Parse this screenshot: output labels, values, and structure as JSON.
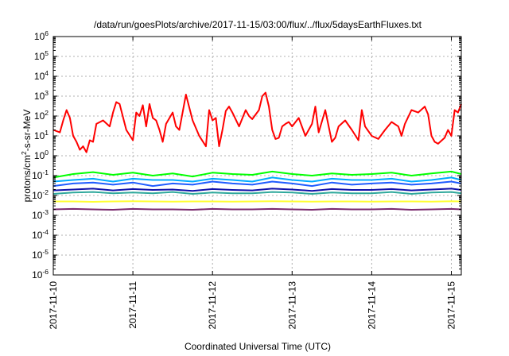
{
  "chart_data": {
    "type": "line",
    "title": "/data/run/goesPlots/archive/2017-11-15/03:00/flux/../flux/5daysEarthFluxes.txt",
    "xlabel": "Coordinated Universal Time (UTC)",
    "ylabel": {
      "pre": "protons/cm",
      "sup": "2",
      "post": "-s-sr-MeV"
    },
    "y_scale": "log",
    "ylim": [
      1e-06,
      1000000.0
    ],
    "y_ticks": [
      {
        "exp": "-6",
        "value": 1e-06
      },
      {
        "exp": "-5",
        "value": 1e-05
      },
      {
        "exp": "-4",
        "value": 0.0001
      },
      {
        "exp": "-3",
        "value": 0.001
      },
      {
        "exp": "-2",
        "value": 0.01
      },
      {
        "exp": "-1",
        "value": 0.1
      },
      {
        "exp": "0",
        "value": 1
      },
      {
        "exp": "1",
        "value": 10.0
      },
      {
        "exp": "2",
        "value": 100.0
      },
      {
        "exp": "3",
        "value": 1000.0
      },
      {
        "exp": "4",
        "value": 10000.0
      },
      {
        "exp": "5",
        "value": 100000.0
      },
      {
        "exp": "6",
        "value": 1000000.0
      }
    ],
    "xlim": [
      "2017-11-10T00:00",
      "2017-11-15T03:00"
    ],
    "x_ticks": [
      "2017-11-10",
      "2017-11-11",
      "2017-11-12",
      "2017-11-13",
      "2017-11-14",
      "2017-11-15"
    ],
    "grid": true,
    "series": [
      {
        "color": "#ff0000",
        "x_hours": [
          0,
          2,
          3,
          4,
          5,
          6,
          7,
          8,
          9,
          10,
          11,
          12,
          13,
          15,
          17,
          18,
          19,
          20,
          22,
          24,
          25,
          26,
          27,
          28,
          29,
          30,
          31,
          32,
          33,
          34,
          36,
          37,
          38,
          40,
          42,
          43,
          44,
          46,
          47,
          48,
          49,
          50,
          51,
          52,
          53,
          54,
          56,
          58,
          59,
          60,
          62,
          63,
          64,
          65,
          66,
          67,
          68,
          69,
          70,
          71,
          72,
          74,
          76,
          78,
          79,
          80,
          82,
          84,
          85,
          86,
          88,
          90,
          92,
          93,
          94,
          96,
          98,
          100,
          102,
          104,
          105,
          106,
          108,
          110,
          112,
          113,
          114,
          115,
          116,
          118,
          119,
          120,
          121,
          122,
          123
        ],
        "values": [
          20,
          15,
          60,
          200,
          80,
          10,
          5,
          2,
          3,
          1.5,
          6,
          5,
          40,
          60,
          30,
          150,
          500,
          400,
          20,
          6,
          150,
          100,
          350,
          30,
          400,
          80,
          60,
          20,
          5,
          40,
          150,
          30,
          20,
          1200,
          60,
          25,
          10,
          3,
          200,
          60,
          80,
          3,
          20,
          180,
          300,
          150,
          30,
          200,
          100,
          70,
          200,
          1000,
          1500,
          300,
          20,
          7,
          8,
          30,
          40,
          50,
          30,
          80,
          10,
          40,
          300,
          15,
          200,
          5,
          8,
          30,
          60,
          20,
          6,
          200,
          30,
          10,
          7,
          20,
          50,
          30,
          10,
          40,
          200,
          150,
          300,
          120,
          10,
          5,
          4,
          8,
          20,
          10,
          200,
          150,
          400
        ]
      },
      {
        "color": "#00ff00",
        "x_hours": [
          0,
          6,
          12,
          18,
          24,
          30,
          36,
          42,
          48,
          54,
          60,
          66,
          72,
          78,
          84,
          90,
          96,
          102,
          108,
          114,
          120,
          123
        ],
        "values": [
          0.08,
          0.12,
          0.15,
          0.11,
          0.14,
          0.1,
          0.13,
          0.09,
          0.14,
          0.12,
          0.11,
          0.16,
          0.12,
          0.1,
          0.13,
          0.11,
          0.12,
          0.14,
          0.1,
          0.13,
          0.16,
          0.12
        ]
      },
      {
        "color": "#00aaff",
        "x_hours": [
          0,
          6,
          12,
          18,
          24,
          30,
          36,
          42,
          48,
          54,
          60,
          66,
          72,
          78,
          84,
          90,
          96,
          102,
          108,
          114,
          120,
          123
        ],
        "values": [
          0.05,
          0.06,
          0.07,
          0.05,
          0.07,
          0.06,
          0.06,
          0.05,
          0.07,
          0.06,
          0.05,
          0.08,
          0.06,
          0.05,
          0.07,
          0.06,
          0.06,
          0.07,
          0.05,
          0.06,
          0.08,
          0.06
        ]
      },
      {
        "color": "#1f5cff",
        "x_hours": [
          0,
          6,
          12,
          18,
          24,
          30,
          36,
          42,
          48,
          54,
          60,
          66,
          72,
          78,
          84,
          90,
          96,
          102,
          108,
          114,
          120,
          123
        ],
        "values": [
          0.03,
          0.04,
          0.045,
          0.035,
          0.045,
          0.03,
          0.04,
          0.035,
          0.05,
          0.04,
          0.035,
          0.05,
          0.04,
          0.03,
          0.045,
          0.035,
          0.04,
          0.045,
          0.035,
          0.04,
          0.05,
          0.04
        ]
      },
      {
        "color": "#2ea89c",
        "x_hours": [
          0,
          6,
          12,
          18,
          24,
          30,
          36,
          42,
          48,
          54,
          60,
          66,
          72,
          78,
          84,
          90,
          96,
          102,
          108,
          114,
          120,
          123
        ],
        "values": [
          0.012,
          0.014,
          0.015,
          0.013,
          0.014,
          0.013,
          0.015,
          0.012,
          0.014,
          0.013,
          0.013,
          0.015,
          0.014,
          0.012,
          0.014,
          0.013,
          0.013,
          0.015,
          0.012,
          0.014,
          0.015,
          0.013
        ]
      },
      {
        "color": "#1010aa",
        "x_hours": [
          0,
          6,
          12,
          18,
          24,
          30,
          36,
          42,
          48,
          54,
          60,
          66,
          72,
          78,
          84,
          90,
          96,
          102,
          108,
          114,
          120,
          123
        ],
        "values": [
          0.018,
          0.02,
          0.022,
          0.018,
          0.021,
          0.019,
          0.02,
          0.017,
          0.021,
          0.019,
          0.018,
          0.022,
          0.02,
          0.017,
          0.021,
          0.019,
          0.019,
          0.021,
          0.018,
          0.02,
          0.022,
          0.019
        ]
      },
      {
        "color": "#ffff33",
        "x_hours": [
          0,
          6,
          12,
          18,
          24,
          30,
          36,
          42,
          48,
          54,
          60,
          66,
          72,
          78,
          84,
          90,
          96,
          102,
          108,
          114,
          120,
          123
        ],
        "values": [
          0.005,
          0.005,
          0.0048,
          0.005,
          0.0051,
          0.005,
          0.0049,
          0.005,
          0.005,
          0.0049,
          0.005,
          0.0051,
          0.005,
          0.0049,
          0.005,
          0.005,
          0.0049,
          0.005,
          0.005,
          0.0049,
          0.0051,
          0.005
        ]
      },
      {
        "color": "#7a2a6e",
        "x_hours": [
          0,
          6,
          12,
          18,
          24,
          30,
          36,
          42,
          48,
          54,
          60,
          66,
          72,
          78,
          84,
          90,
          96,
          102,
          108,
          114,
          120,
          123
        ],
        "values": [
          0.002,
          0.0021,
          0.002,
          0.0019,
          0.0021,
          0.002,
          0.002,
          0.0019,
          0.0021,
          0.002,
          0.002,
          0.0021,
          0.002,
          0.0019,
          0.0021,
          0.002,
          0.002,
          0.0021,
          0.0019,
          0.002,
          0.0021,
          0.002
        ]
      }
    ]
  }
}
